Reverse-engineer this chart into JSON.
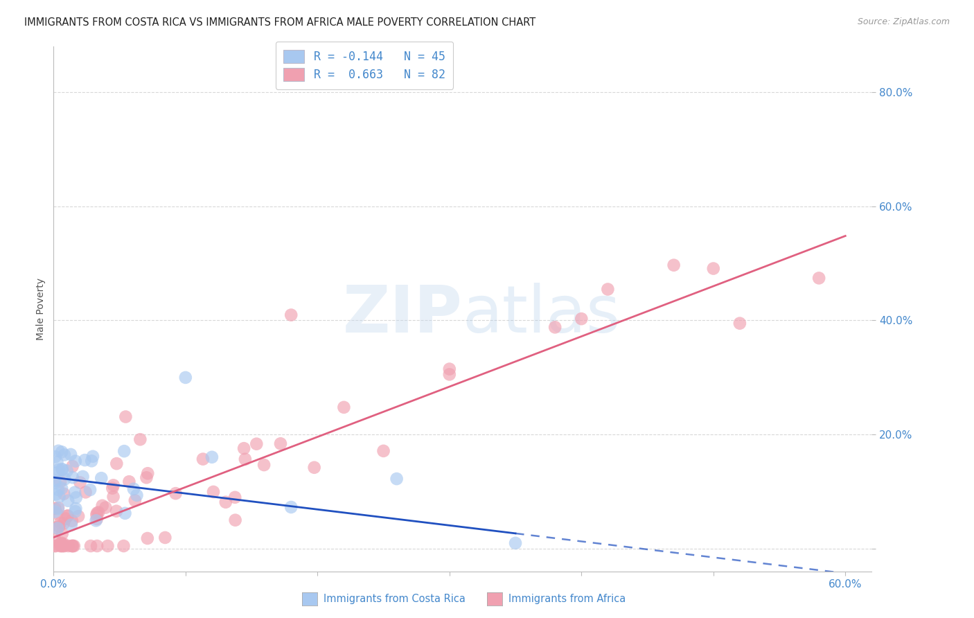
{
  "title": "IMMIGRANTS FROM COSTA RICA VS IMMIGRANTS FROM AFRICA MALE POVERTY CORRELATION CHART",
  "source": "Source: ZipAtlas.com",
  "ylabel": "Male Poverty",
  "xlim": [
    0.0,
    0.62
  ],
  "ylim": [
    -0.04,
    0.88
  ],
  "yticks": [
    0.0,
    0.2,
    0.4,
    0.6,
    0.8
  ],
  "xticks": [
    0.0,
    0.1,
    0.2,
    0.3,
    0.4,
    0.5,
    0.6
  ],
  "series1_label": "Immigrants from Costa Rica",
  "series1_color": "#a8c8f0",
  "series1_R": -0.144,
  "series1_N": 45,
  "series2_label": "Immigrants from Africa",
  "series2_color": "#f0a0b0",
  "series2_R": 0.663,
  "series2_N": 82,
  "trend1_color": "#2050c0",
  "trend2_color": "#e06080",
  "background_color": "#ffffff",
  "grid_color": "#d8d8d8",
  "axis_color": "#4488cc",
  "watermark_color": "#c8ddf0",
  "title_fontsize": 10.5,
  "tick_fontsize": 11,
  "watermark_text": "ZIPatlas",
  "legend_text1": "R = -0.144   N = 45",
  "legend_text2": "R =  0.663   N = 82",
  "trend1_intercept": 0.125,
  "trend1_slope": -0.28,
  "trend2_intercept": 0.02,
  "trend2_slope": 0.88,
  "trend1_solid_end": 0.35,
  "trend1_dash_end": 0.62
}
